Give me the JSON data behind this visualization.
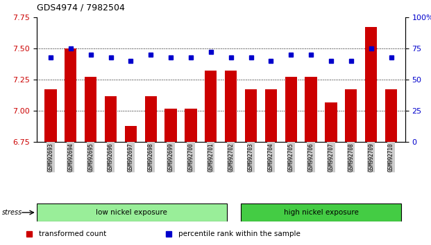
{
  "title": "GDS4974 / 7982504",
  "samples": [
    "GSM992693",
    "GSM992694",
    "GSM992695",
    "GSM992696",
    "GSM992697",
    "GSM992698",
    "GSM992699",
    "GSM992700",
    "GSM992701",
    "GSM992702",
    "GSM992703",
    "GSM992704",
    "GSM992705",
    "GSM992706",
    "GSM992707",
    "GSM992708",
    "GSM992709",
    "GSM992710"
  ],
  "transformed_count": [
    7.17,
    7.5,
    7.27,
    7.12,
    6.88,
    7.12,
    7.02,
    7.02,
    7.32,
    7.32,
    7.17,
    7.17,
    7.27,
    7.27,
    7.07,
    7.17,
    7.67,
    7.17
  ],
  "percentile_rank": [
    68,
    75,
    70,
    68,
    65,
    70,
    68,
    68,
    72,
    68,
    68,
    65,
    70,
    70,
    65,
    65,
    75,
    68
  ],
  "low_group_count": 10,
  "high_group_count": 8,
  "low_group_label": "low nickel exposure",
  "high_group_label": "high nickel exposure",
  "low_group_color": "#99EE99",
  "high_group_color": "#44CC44",
  "stress_label": "stress",
  "ylim_left": [
    6.75,
    7.75
  ],
  "yticks_left": [
    6.75,
    7.0,
    7.25,
    7.5,
    7.75
  ],
  "yticks_right": [
    0,
    25,
    50,
    75,
    100
  ],
  "bar_color": "#CC0000",
  "dot_color": "#0000CC",
  "bar_width": 0.6,
  "background_color": "#ffffff",
  "grid_color": "#000000",
  "tick_label_bg": "#CCCCCC",
  "legend_red_label": "transformed count",
  "legend_blue_label": "percentile rank within the sample"
}
